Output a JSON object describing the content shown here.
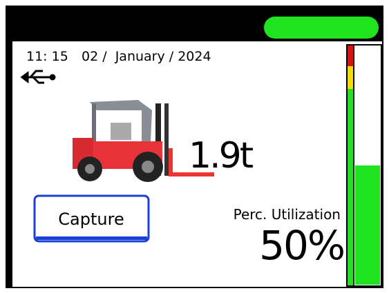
{
  "status_bar": {
    "time": "11: 15",
    "date": "02 /  January / 2024"
  },
  "load": {
    "weight": "1.9t"
  },
  "button": {
    "label": "Capture"
  },
  "utilization": {
    "label": "Perc. Utilization",
    "value": 50,
    "value_label": "50%"
  }
}
